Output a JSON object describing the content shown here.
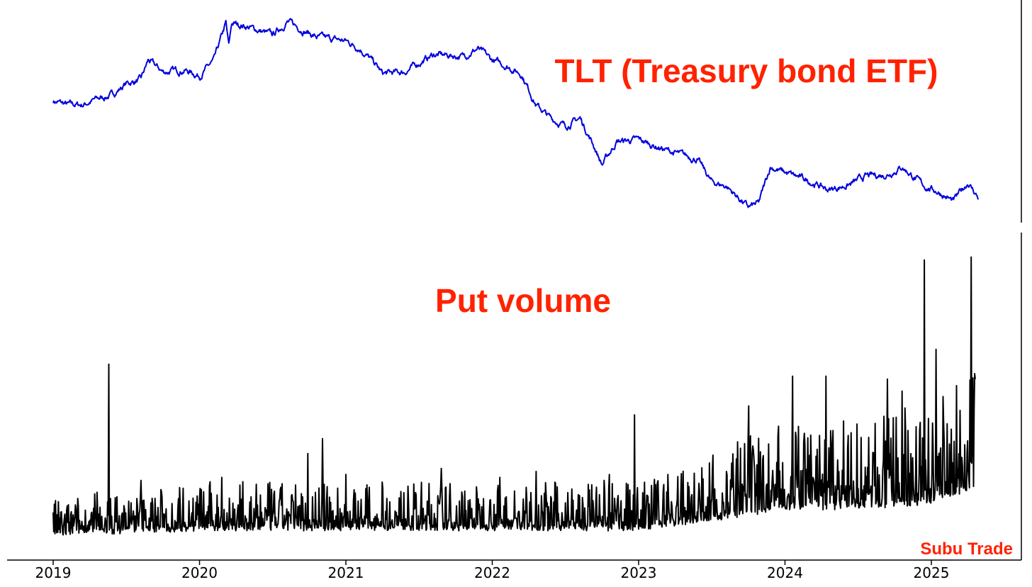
{
  "chart_data": [
    {
      "type": "line",
      "title": "TLT (Treasury bond ETF)",
      "colors": {
        "line": "#0000dd",
        "title": "#ff2200"
      },
      "grid": false,
      "note": "y-axis unlabeled; values in relative units (0 = low, 100 = high)",
      "ylim": [
        0,
        100
      ],
      "series": [
        {
          "x": [
            2019.0,
            2019.1,
            2019.2,
            2019.3,
            2019.4,
            2019.5,
            2019.6,
            2019.65,
            2019.75,
            2019.9,
            2020.0,
            2020.1,
            2020.18,
            2020.2,
            2020.22,
            2020.3,
            2020.5,
            2020.6,
            2020.8,
            2021.0,
            2021.1,
            2021.2,
            2021.25,
            2021.4,
            2021.6,
            2021.8,
            2021.9,
            2022.0,
            2022.1,
            2022.2,
            2022.3,
            2022.4,
            2022.5,
            2022.6,
            2022.7,
            2022.75,
            2022.85,
            2023.0,
            2023.1,
            2023.25,
            2023.4,
            2023.5,
            2023.6,
            2023.75,
            2023.82,
            2023.9,
            2024.0,
            2024.15,
            2024.3,
            2024.45,
            2024.55,
            2024.7,
            2024.8,
            2024.95,
            2025.05,
            2025.15,
            2025.25,
            2025.32
          ],
          "values": [
            57,
            55,
            55,
            58,
            60,
            66,
            68,
            78,
            72,
            73,
            70,
            78,
            97,
            85,
            97,
            96,
            91,
            98,
            90,
            88,
            84,
            76,
            71,
            72,
            81,
            80,
            84,
            78,
            75,
            71,
            55,
            48,
            44,
            48,
            33,
            24,
            36,
            37,
            34,
            30,
            27,
            15,
            13,
            2,
            4,
            23,
            20,
            16,
            11,
            14,
            18,
            19,
            23,
            13,
            10,
            5,
            15,
            7
          ]
        }
      ]
    },
    {
      "type": "line",
      "title": "Put volume",
      "colors": {
        "line": "#000000",
        "title": "#ff2200"
      },
      "grid": false,
      "note": "y-axis unlabeled; values in relative units",
      "ylim": [
        0,
        100
      ],
      "xlim": [
        2019.0,
        2025.6
      ],
      "xticks": [
        "2019",
        "2020",
        "2021",
        "2022",
        "2023",
        "2024",
        "2025"
      ],
      "spikes": {
        "x": [
          2019.38,
          2019.3,
          2019.6,
          2020.15,
          2020.74,
          2020.84,
          2021.0,
          2021.65,
          2022.05,
          2022.3,
          2022.8,
          2022.97,
          2023.2,
          2023.6,
          2023.75,
          2023.95,
          2024.05,
          2024.28,
          2024.45,
          2024.7,
          2024.8,
          2024.95,
          2025.03,
          2025.27,
          2025.3
        ],
        "values": [
          61,
          18,
          22,
          23,
          31,
          36,
          24,
          26,
          23,
          25,
          24,
          44,
          24,
          25,
          47,
          37,
          57,
          57,
          38,
          56,
          52,
          96,
          66,
          97,
          56
        ]
      },
      "baseline_trend": {
        "x": [
          2019.0,
          2020.0,
          2021.0,
          2022.0,
          2023.0,
          2023.5,
          2024.0,
          2024.5,
          2025.0,
          2025.3
        ],
        "values": [
          4,
          6,
          6,
          6,
          6,
          9,
          13,
          13,
          15,
          20
        ]
      }
    }
  ],
  "watermark": {
    "text": "Subu Trade",
    "color": "#ff2200"
  }
}
